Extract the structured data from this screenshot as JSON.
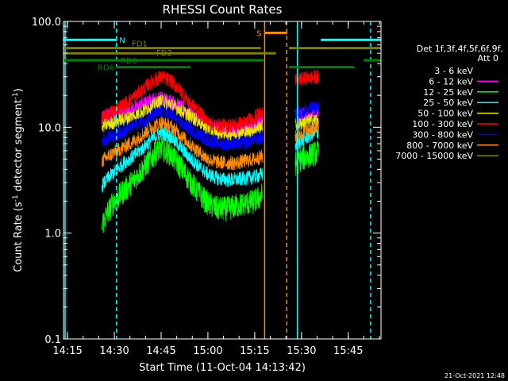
{
  "chart_data": {
    "type": "line",
    "title": "RHESSI Count Rates",
    "xlabel": "Start Time (11-Oct-04 14:13:42)",
    "ylabel_main": "Count Rate (s",
    "ylabel_sup1": "-1",
    "ylabel_mid": " detector segment",
    "ylabel_sup2": "-1",
    "ylabel_end": ")",
    "y_scale": "log",
    "ylim": [
      0.1,
      100.0
    ],
    "xlim_min": [
      13.7,
      115.5
    ],
    "x_ticks": [
      {
        "t": 15,
        "label": "14:15"
      },
      {
        "t": 30,
        "label": "14:30"
      },
      {
        "t": 45,
        "label": "14:45"
      },
      {
        "t": 60,
        "label": "15:00"
      },
      {
        "t": 75,
        "label": "15:15"
      },
      {
        "t": 90,
        "label": "15:30"
      },
      {
        "t": 105,
        "label": "15:45"
      }
    ],
    "y_ticks": [
      {
        "v": 0.1,
        "label": "0.1"
      },
      {
        "v": 1.0,
        "label": "1.0"
      },
      {
        "v": 10.0,
        "label": "10.0"
      },
      {
        "v": 100.0,
        "label": "100.0"
      }
    ],
    "legend_title_1": "Det 1f,3f,4f,5f,6f,9f,",
    "legend_title_2": "Att 0",
    "series": [
      {
        "name": "3 - 6 keV",
        "color": "#000000",
        "x": [
          26,
          28,
          30,
          33,
          36,
          39,
          42,
          45,
          48,
          51,
          54,
          57,
          60,
          63,
          66,
          69,
          72,
          75,
          77.5,
          88,
          90,
          93,
          95.5
        ],
        "y": [
          2.2,
          2.8,
          3.2,
          3.9,
          4.6,
          5.6,
          7.0,
          8.4,
          7.5,
          5.8,
          4.4,
          3.5,
          2.9,
          2.9,
          2.9,
          3.0,
          3.1,
          3.2,
          3.6,
          5.5,
          6.2,
          7.0,
          7.4
        ]
      },
      {
        "name": "6 - 12 keV",
        "color": "#ff00ff",
        "x": [
          26,
          28,
          30,
          33,
          36,
          39,
          42,
          45,
          48,
          51,
          54,
          57,
          60,
          63,
          66,
          69,
          72,
          75,
          77.5,
          88,
          90,
          93,
          95.5
        ],
        "y": [
          12.2,
          13.0,
          13.5,
          14.2,
          15.0,
          16.4,
          18.0,
          19.0,
          17.8,
          15.8,
          13.9,
          12.2,
          10.5,
          9.8,
          9.5,
          9.5,
          9.8,
          10.4,
          11.3,
          12.5,
          13.0,
          13.5,
          13.8
        ]
      },
      {
        "name": "12 - 25 keV",
        "color": "#00ff00",
        "x": [
          26,
          28,
          30,
          33,
          36,
          39,
          42,
          45,
          48,
          51,
          54,
          57,
          60,
          63,
          66,
          69,
          72,
          75,
          77.5,
          88,
          90,
          93,
          95.5
        ],
        "y": [
          1.2,
          1.6,
          2.0,
          2.5,
          3.1,
          4.0,
          5.2,
          6.4,
          5.6,
          4.3,
          3.2,
          2.4,
          1.9,
          1.7,
          1.7,
          1.8,
          1.9,
          2.0,
          2.3,
          4.5,
          5.0,
          5.5,
          5.8
        ]
      },
      {
        "name": "25 - 50 keV",
        "color": "#00ffff",
        "x": [
          26,
          28,
          30,
          33,
          36,
          39,
          42,
          45,
          48,
          51,
          54,
          57,
          60,
          63,
          66,
          69,
          72,
          75,
          77.5,
          88,
          90,
          93,
          95.5
        ],
        "y": [
          2.8,
          3.3,
          3.8,
          4.6,
          5.3,
          6.3,
          7.7,
          9.0,
          8.2,
          6.6,
          5.2,
          4.3,
          3.6,
          3.3,
          3.2,
          3.2,
          3.3,
          3.4,
          3.6,
          6.7,
          7.5,
          8.5,
          9.0
        ]
      },
      {
        "name": "50 - 100 keV",
        "color": "#e8e800",
        "x": [
          26,
          28,
          30,
          33,
          36,
          39,
          42,
          45,
          48,
          51,
          54,
          57,
          60,
          63,
          66,
          69,
          72,
          75,
          77.5,
          88,
          90,
          93,
          95.5
        ],
        "y": [
          10.2,
          10.8,
          11.2,
          11.9,
          12.7,
          14.0,
          15.8,
          17.5,
          16.5,
          14.6,
          12.9,
          11.4,
          9.8,
          9.0,
          8.8,
          8.8,
          9.0,
          9.6,
          10.3,
          10.5,
          11.0,
          11.5,
          11.8
        ]
      },
      {
        "name": "100 - 300 keV",
        "color": "#ff0000",
        "x": [
          26,
          28,
          30,
          33,
          36,
          39,
          42,
          45,
          48,
          51,
          54,
          57,
          60,
          63,
          66,
          69,
          72,
          75,
          77.5,
          88,
          90,
          93,
          95.5
        ],
        "y": [
          12.0,
          13.2,
          14.5,
          16.5,
          19.0,
          22.5,
          27.0,
          30.0,
          27.5,
          22.5,
          17.5,
          14.2,
          11.2,
          10.4,
          10.4,
          10.6,
          11.2,
          12.5,
          14.2,
          27.0,
          28.5,
          29.5,
          30.0
        ]
      },
      {
        "name": "300 - 800 keV",
        "color": "#0000ff",
        "x": [
          26,
          28,
          30,
          33,
          36,
          39,
          42,
          45,
          48,
          51,
          54,
          57,
          60,
          63,
          66,
          69,
          72,
          75,
          77.5,
          88,
          90,
          93,
          95.5
        ],
        "y": [
          7.4,
          8.0,
          8.5,
          9.3,
          10.1,
          11.3,
          12.8,
          14.0,
          13.0,
          11.2,
          9.8,
          8.6,
          7.6,
          7.2,
          7.0,
          7.0,
          7.2,
          7.6,
          8.2,
          13.0,
          14.0,
          15.0,
          15.5
        ]
      },
      {
        "name": "800 - 7000 keV",
        "color": "#ff8c00",
        "x": [
          26,
          28,
          30,
          33,
          36,
          39,
          42,
          45,
          48,
          51,
          54,
          57,
          60,
          63,
          66,
          69,
          72,
          75,
          77.5,
          88,
          90,
          93,
          95.5
        ],
        "y": [
          4.8,
          5.3,
          5.8,
          6.5,
          7.3,
          8.5,
          10.0,
          11.0,
          10.2,
          8.6,
          7.0,
          5.9,
          5.0,
          4.7,
          4.6,
          4.6,
          4.8,
          5.0,
          5.3,
          8.0,
          8.8,
          9.6,
          10.0
        ]
      },
      {
        "name": "7000 - 15000 keV",
        "color": "#808000",
        "x": [],
        "y": []
      }
    ],
    "attenuator_bars": [
      {
        "label": "N",
        "color": "#00ffff",
        "segments": [
          [
            13.7,
            30.8
          ],
          [
            96.2,
            115.5
          ]
        ],
        "value": 67
      },
      {
        "label": "FD1",
        "color": "#808000",
        "segments": [
          [
            13.7,
            77.0
          ],
          [
            86.0,
            115.5
          ]
        ],
        "value": 56
      },
      {
        "label": "FD2",
        "color": "#808000",
        "segments": [
          [
            13.7,
            81.8
          ]
        ],
        "value": 50
      },
      {
        "label": "RD0",
        "color": "#008000",
        "segments": [
          [
            13.7,
            77.8
          ],
          [
            110.0,
            115.5
          ]
        ],
        "value": 43
      },
      {
        "label": "RD6",
        "color": "#008000",
        "segments": [
          [
            30.5,
            54.5
          ],
          [
            86.0,
            107.0
          ]
        ],
        "value": 37
      },
      {
        "label": "S",
        "color": "#ff8c00",
        "segments": [
          [
            78.2,
            85.4
          ]
        ],
        "value": 78
      }
    ],
    "vertical_markers": [
      {
        "t": 14.2,
        "color": "#00ffff",
        "style": "solid"
      },
      {
        "t": 30.7,
        "color": "#00ffff",
        "style": "dashed"
      },
      {
        "t": 78.2,
        "color": "#ff8c00",
        "style": "solid"
      },
      {
        "t": 85.3,
        "color": "#ff8c00",
        "style": "dashed"
      },
      {
        "t": 88.7,
        "color": "#00ffff",
        "style": "solid"
      },
      {
        "t": 112.2,
        "color": "#00ffff",
        "style": "dashed"
      }
    ],
    "timestamp": "21-Oct-2021 12:48"
  }
}
